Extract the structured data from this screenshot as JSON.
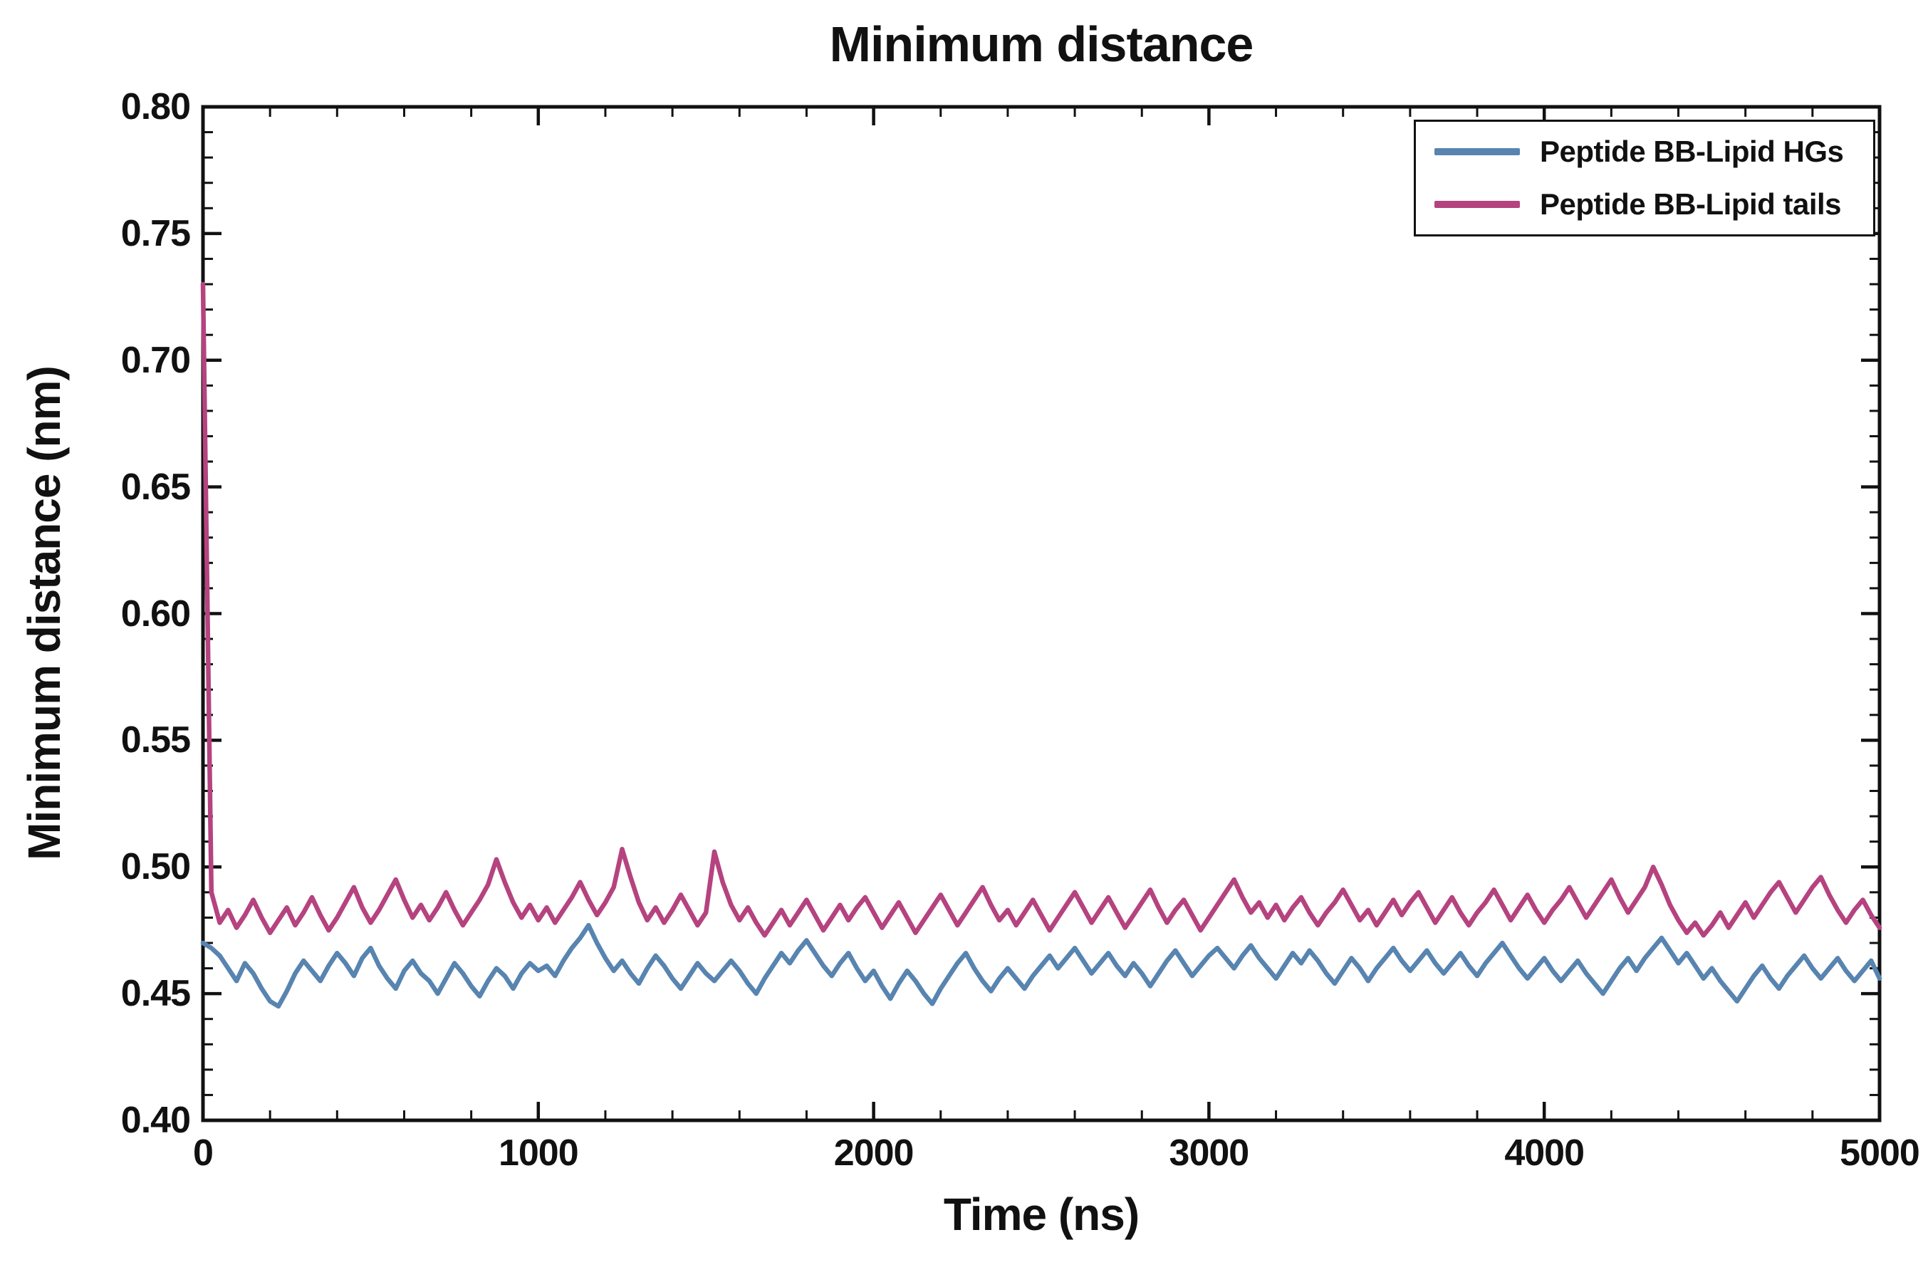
{
  "title": "Minimum distance",
  "chart_data": {
    "type": "line",
    "title": "Minimum distance",
    "xlabel": "Time (ns)",
    "ylabel": "Minimum distance (nm)",
    "xlim": [
      0,
      5000
    ],
    "ylim": [
      0.4,
      0.8
    ],
    "x_ticks": [
      0,
      1000,
      2000,
      3000,
      4000,
      5000
    ],
    "x_tick_labels": [
      "0",
      "1000",
      "2000",
      "3000",
      "4000",
      "5000"
    ],
    "y_ticks": [
      0.4,
      0.45,
      0.5,
      0.55,
      0.6,
      0.65,
      0.7,
      0.75,
      0.8
    ],
    "y_tick_labels": [
      "0.40",
      "0.45",
      "0.50",
      "0.55",
      "0.60",
      "0.65",
      "0.70",
      "0.75",
      "0.80"
    ],
    "x_minor_step": 200,
    "y_minor_step": 0.01,
    "grid": false,
    "legend_position": "top-right-inside",
    "x_start": 0,
    "x_step": 25,
    "series": [
      {
        "name": "Peptide BB-Lipid HGs",
        "color": "#5884b0",
        "values": [
          0.47,
          0.468,
          0.465,
          0.46,
          0.455,
          0.462,
          0.458,
          0.452,
          0.447,
          0.445,
          0.451,
          0.458,
          0.463,
          0.459,
          0.455,
          0.461,
          0.466,
          0.462,
          0.457,
          0.464,
          0.468,
          0.461,
          0.456,
          0.452,
          0.459,
          0.463,
          0.458,
          0.455,
          0.45,
          0.456,
          0.462,
          0.458,
          0.453,
          0.449,
          0.455,
          0.46,
          0.457,
          0.452,
          0.458,
          0.462,
          0.459,
          0.461,
          0.457,
          0.463,
          0.468,
          0.472,
          0.477,
          0.47,
          0.464,
          0.459,
          0.463,
          0.458,
          0.454,
          0.46,
          0.465,
          0.461,
          0.456,
          0.452,
          0.457,
          0.462,
          0.458,
          0.455,
          0.459,
          0.463,
          0.459,
          0.454,
          0.45,
          0.456,
          0.461,
          0.466,
          0.462,
          0.467,
          0.471,
          0.466,
          0.461,
          0.457,
          0.462,
          0.466,
          0.46,
          0.455,
          0.459,
          0.453,
          0.448,
          0.454,
          0.459,
          0.455,
          0.45,
          0.446,
          0.452,
          0.457,
          0.462,
          0.466,
          0.46,
          0.455,
          0.451,
          0.456,
          0.46,
          0.456,
          0.452,
          0.457,
          0.461,
          0.465,
          0.46,
          0.464,
          0.468,
          0.463,
          0.458,
          0.462,
          0.466,
          0.461,
          0.457,
          0.462,
          0.458,
          0.453,
          0.458,
          0.463,
          0.467,
          0.462,
          0.457,
          0.461,
          0.465,
          0.468,
          0.464,
          0.46,
          0.465,
          0.469,
          0.464,
          0.46,
          0.456,
          0.461,
          0.466,
          0.462,
          0.467,
          0.463,
          0.458,
          0.454,
          0.459,
          0.464,
          0.46,
          0.455,
          0.46,
          0.464,
          0.468,
          0.463,
          0.459,
          0.463,
          0.467,
          0.462,
          0.458,
          0.462,
          0.466,
          0.461,
          0.457,
          0.462,
          0.466,
          0.47,
          0.465,
          0.46,
          0.456,
          0.46,
          0.464,
          0.459,
          0.455,
          0.459,
          0.463,
          0.458,
          0.454,
          0.45,
          0.455,
          0.46,
          0.464,
          0.459,
          0.464,
          0.468,
          0.472,
          0.467,
          0.462,
          0.466,
          0.461,
          0.456,
          0.46,
          0.455,
          0.451,
          0.447,
          0.452,
          0.457,
          0.461,
          0.456,
          0.452,
          0.457,
          0.461,
          0.465,
          0.46,
          0.456,
          0.46,
          0.464,
          0.459,
          0.455,
          0.459,
          0.463,
          0.456
        ]
      },
      {
        "name": "Peptide BB-Lipid tails",
        "color": "#b5437f",
        "values": [
          0.73,
          0.49,
          0.478,
          0.483,
          0.476,
          0.481,
          0.487,
          0.48,
          0.474,
          0.479,
          0.484,
          0.477,
          0.482,
          0.488,
          0.481,
          0.475,
          0.48,
          0.486,
          0.492,
          0.484,
          0.478,
          0.483,
          0.489,
          0.495,
          0.487,
          0.48,
          0.485,
          0.479,
          0.484,
          0.49,
          0.483,
          0.477,
          0.482,
          0.487,
          0.493,
          0.503,
          0.494,
          0.486,
          0.48,
          0.485,
          0.479,
          0.484,
          0.478,
          0.483,
          0.488,
          0.494,
          0.487,
          0.481,
          0.486,
          0.492,
          0.507,
          0.496,
          0.486,
          0.479,
          0.484,
          0.478,
          0.483,
          0.489,
          0.483,
          0.477,
          0.482,
          0.506,
          0.494,
          0.485,
          0.479,
          0.484,
          0.478,
          0.473,
          0.478,
          0.483,
          0.477,
          0.482,
          0.487,
          0.481,
          0.475,
          0.48,
          0.485,
          0.479,
          0.484,
          0.488,
          0.482,
          0.476,
          0.481,
          0.486,
          0.48,
          0.474,
          0.479,
          0.484,
          0.489,
          0.483,
          0.477,
          0.482,
          0.487,
          0.492,
          0.485,
          0.479,
          0.483,
          0.477,
          0.482,
          0.487,
          0.481,
          0.475,
          0.48,
          0.485,
          0.49,
          0.484,
          0.478,
          0.483,
          0.488,
          0.482,
          0.476,
          0.481,
          0.486,
          0.491,
          0.484,
          0.478,
          0.483,
          0.487,
          0.481,
          0.475,
          0.48,
          0.485,
          0.49,
          0.495,
          0.488,
          0.482,
          0.486,
          0.48,
          0.485,
          0.479,
          0.484,
          0.488,
          0.482,
          0.477,
          0.482,
          0.486,
          0.491,
          0.485,
          0.479,
          0.483,
          0.477,
          0.482,
          0.487,
          0.481,
          0.486,
          0.49,
          0.484,
          0.478,
          0.483,
          0.488,
          0.482,
          0.477,
          0.482,
          0.486,
          0.491,
          0.485,
          0.479,
          0.484,
          0.489,
          0.483,
          0.478,
          0.483,
          0.487,
          0.492,
          0.486,
          0.48,
          0.485,
          0.49,
          0.495,
          0.488,
          0.482,
          0.487,
          0.492,
          0.5,
          0.493,
          0.485,
          0.479,
          0.474,
          0.478,
          0.473,
          0.477,
          0.482,
          0.476,
          0.481,
          0.486,
          0.48,
          0.485,
          0.49,
          0.494,
          0.488,
          0.482,
          0.487,
          0.492,
          0.496,
          0.489,
          0.483,
          0.478,
          0.483,
          0.487,
          0.481,
          0.476
        ]
      }
    ]
  }
}
